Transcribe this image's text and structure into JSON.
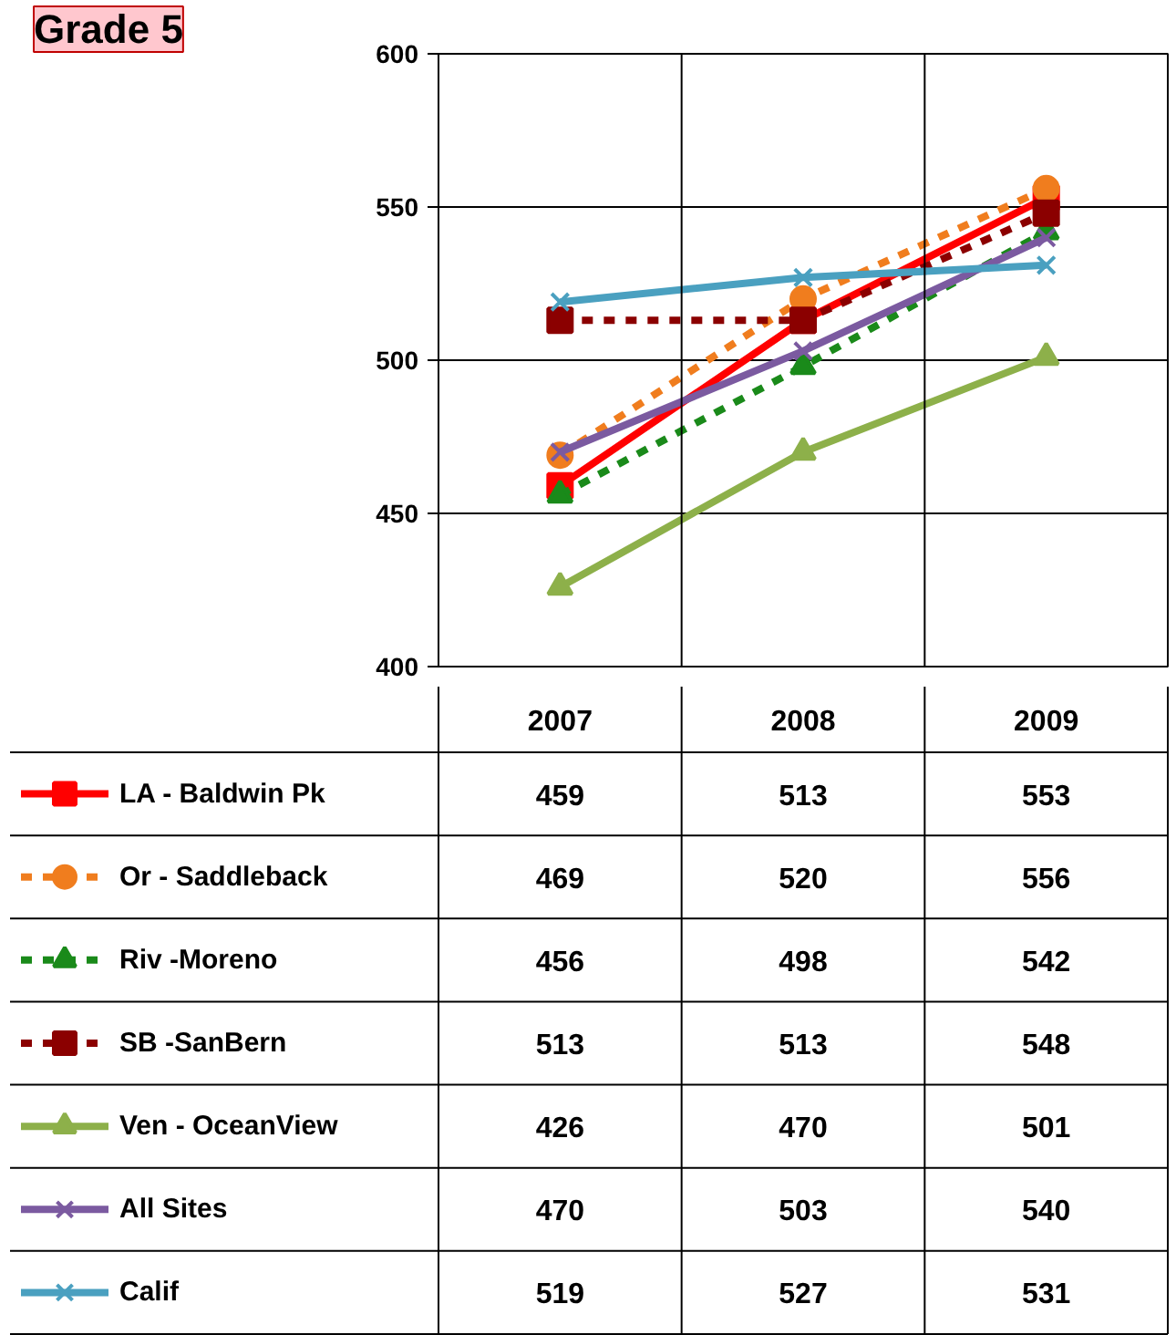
{
  "chart_data": {
    "type": "line",
    "title": "Grade 5",
    "categories": [
      "2007",
      "2008",
      "2009"
    ],
    "ylim": [
      400,
      600
    ],
    "yticks": [
      400,
      450,
      500,
      550,
      600
    ],
    "grid": "y",
    "legend": "bottom",
    "data_labels": true,
    "series": [
      {
        "name": "LA - Baldwin Pk",
        "color": "#ff0000",
        "marker": "square",
        "line_style": "solid",
        "values": [
          459,
          513,
          553
        ]
      },
      {
        "name": "Or - Saddleback",
        "color": "#f07d1e",
        "marker": "circle",
        "line_style": "dashed",
        "values": [
          469,
          520,
          556
        ]
      },
      {
        "name": "Riv -Moreno",
        "color": "#1a8a1a",
        "marker": "triangle",
        "line_style": "dashed",
        "values": [
          456,
          498,
          542
        ]
      },
      {
        "name": "SB -SanBern",
        "color": "#8b0000",
        "marker": "square",
        "line_style": "dashed",
        "values": [
          513,
          513,
          548
        ]
      },
      {
        "name": "Ven - OceanView",
        "color": "#8db04a",
        "marker": "triangle",
        "line_style": "solid",
        "values": [
          426,
          470,
          501
        ]
      },
      {
        "name": "All Sites",
        "color": "#7b5aa0",
        "marker": "cross",
        "line_style": "solid",
        "values": [
          470,
          503,
          540
        ]
      },
      {
        "name": "Calif",
        "color": "#4aa0c0",
        "marker": "cross",
        "line_style": "solid",
        "values": [
          519,
          527,
          531
        ]
      }
    ]
  }
}
